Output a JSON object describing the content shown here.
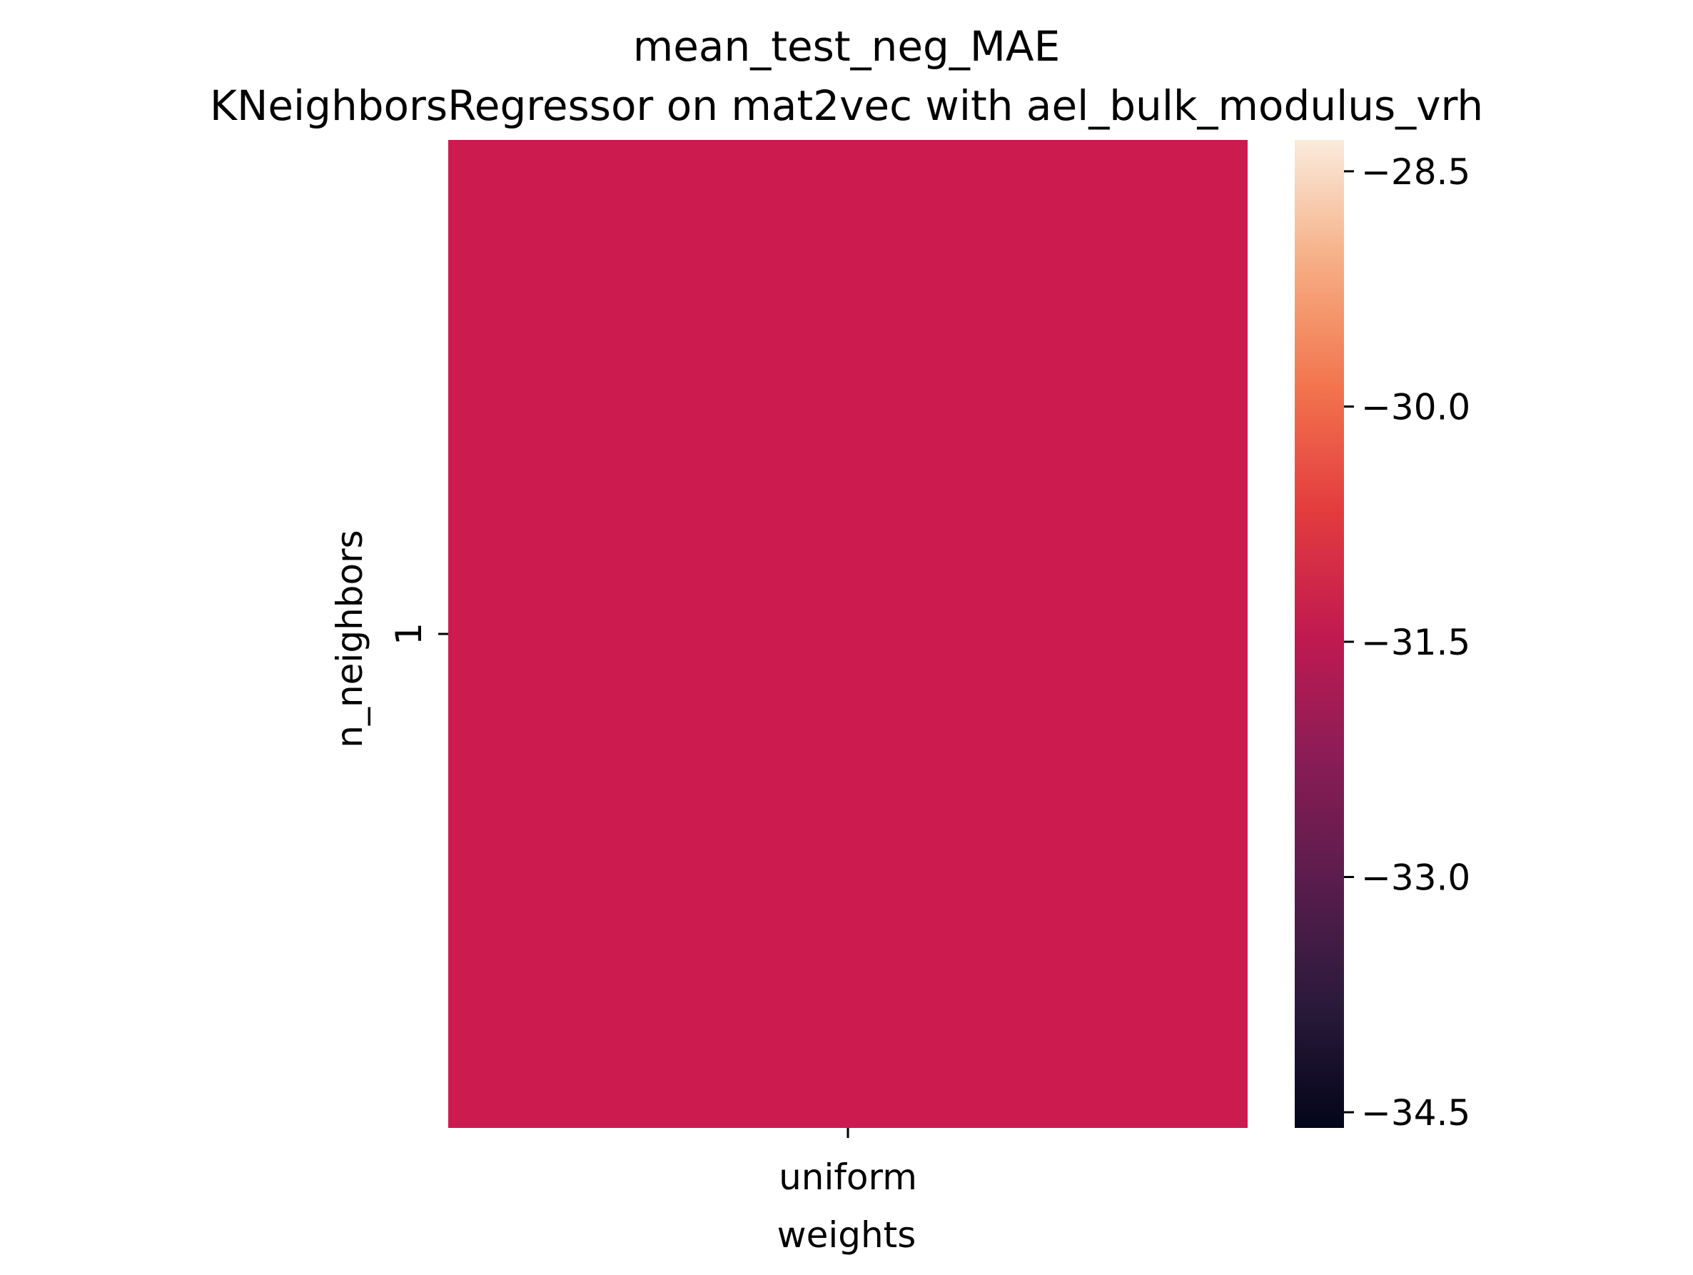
{
  "chart_data": {
    "type": "heatmap",
    "title_lines": [
      "mean_test_neg_MAE",
      "KNeighborsRegressor on mat2vec with ael_bulk_modulus_vrh"
    ],
    "xlabel": "weights",
    "ylabel": "n_neighbors",
    "x_categories": [
      "uniform"
    ],
    "y_categories": [
      "1"
    ],
    "values": [
      [
        -31.5
      ]
    ],
    "colorbar": {
      "colormap": "rocket",
      "vmin": -34.6,
      "vmax": -28.3,
      "ticks": [
        -34.5,
        -33.0,
        -31.5,
        -30.0,
        -28.5
      ],
      "tick_labels": [
        "−34.5",
        "−33.0",
        "−31.5",
        "−30.0",
        "−28.5"
      ]
    },
    "cell_color": "#cb1b4f"
  }
}
